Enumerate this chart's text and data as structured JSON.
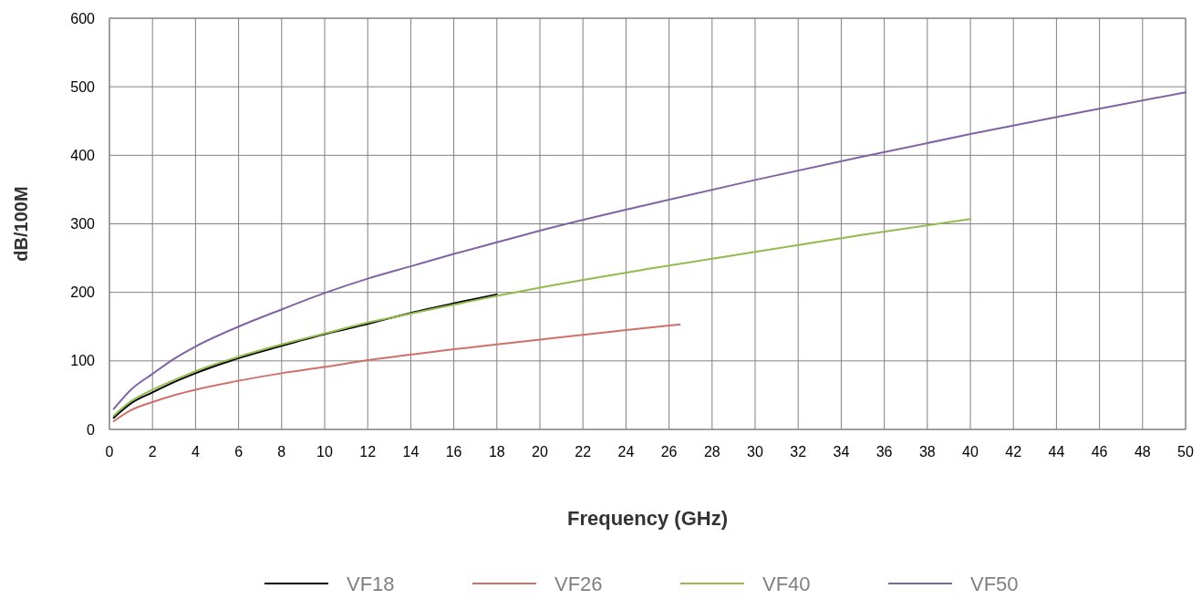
{
  "chart_data": {
    "type": "line",
    "xlabel": "Frequency (GHz)",
    "ylabel": "dB/100M",
    "xlim": [
      0,
      50
    ],
    "xticks": [
      0,
      2,
      4,
      6,
      8,
      10,
      12,
      14,
      16,
      18,
      20,
      22,
      24,
      26,
      28,
      30,
      32,
      34,
      36,
      38,
      40,
      42,
      44,
      46,
      48,
      50
    ],
    "ylim": [
      0,
      600
    ],
    "yticks": [
      0,
      100,
      200,
      300,
      400,
      500,
      600
    ],
    "grid": true,
    "legend": "bottom",
    "marker": "none",
    "line_style": "solid",
    "series": [
      {
        "name": "VF18",
        "color": "#000000",
        "x": [
          0.2,
          1,
          2,
          3,
          4,
          6,
          8,
          10,
          12,
          14,
          16,
          18
        ],
        "values": [
          17,
          38,
          54,
          69,
          82,
          104,
          122,
          139,
          154,
          170,
          184,
          197
        ]
      },
      {
        "name": "VF26",
        "color": "#d0706a",
        "x": [
          0.2,
          1,
          2,
          3,
          4,
          6,
          8,
          10,
          12,
          14,
          16,
          18,
          20,
          22,
          24,
          26.5
        ],
        "values": [
          12,
          28,
          40,
          50,
          58,
          71,
          82,
          91,
          101,
          109,
          117,
          124,
          131,
          138,
          145,
          153
        ]
      },
      {
        "name": "VF40",
        "color": "#93bb4f",
        "x": [
          0.2,
          1,
          2,
          3,
          4,
          6,
          8,
          10,
          12,
          14,
          16,
          18,
          20,
          25,
          30,
          35,
          40
        ],
        "values": [
          20,
          41,
          58,
          72,
          85,
          106,
          124,
          140,
          156,
          169,
          182,
          195,
          207,
          234,
          259,
          284,
          307
        ]
      },
      {
        "name": "VF50",
        "color": "#8064a2",
        "x": [
          0.2,
          1,
          2,
          3,
          4,
          6,
          8,
          10,
          12,
          14,
          16,
          18,
          20,
          25,
          30,
          35,
          40,
          45,
          50
        ],
        "values": [
          30,
          58,
          81,
          103,
          121,
          150,
          175,
          199,
          220,
          238,
          256,
          273,
          290,
          328,
          364,
          398,
          431,
          462,
          492
        ]
      }
    ]
  }
}
